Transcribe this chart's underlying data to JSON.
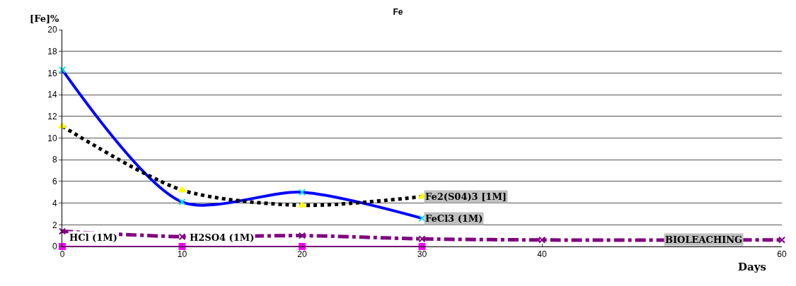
{
  "chart_data": {
    "type": "line",
    "title": "Fe",
    "xlabel": "Days",
    "ylabel": "[Fe]%",
    "x": [
      0,
      10,
      20,
      30
    ],
    "series": [
      {
        "color": "#0000ff",
        "values": [
          16.3,
          4.1,
          5.0,
          2.6
        ],
        "marker": "cross",
        "line_style": "solid"
      },
      {
        "color": "#000000",
        "values": [
          11.1,
          5.2,
          3.8,
          4.6
        ],
        "marker": "triangle",
        "line_style": "dotted"
      },
      {
        "color": "#800080",
        "x": [
          0,
          10,
          20,
          30,
          40,
          60
        ],
        "values": [
          1.4,
          0.9,
          1.0,
          0.7,
          0.6,
          0.6
        ],
        "marker": "cross",
        "line_style": "dashdot"
      },
      {
        "color": "#ff00ff",
        "values": [
          0,
          0,
          0,
          0
        ],
        "marker": "square",
        "line_style": "solid"
      }
    ],
    "annotations": [
      {
        "text": "HCl (1M)",
        "x": 0,
        "y": 0
      },
      {
        "text": "H2SO4 (1M)",
        "x": 10,
        "y": 0
      },
      {
        "text": "Fe2(S04)3 [1M]",
        "x": 30,
        "y": 4.6
      },
      {
        "text": "FeCl3 (1M)",
        "x": 30,
        "y": 2.6
      },
      {
        "text": "BIOLEACHING",
        "x": 50,
        "y": 0.6
      }
    ],
    "xlim": [
      0,
      60
    ],
    "xticks": [
      0,
      10,
      20,
      30,
      40,
      60
    ],
    "ylim": [
      0,
      20
    ],
    "yticks": [
      0,
      2,
      4,
      6,
      8,
      10,
      12,
      14,
      16,
      18,
      20
    ],
    "grid": "y"
  }
}
